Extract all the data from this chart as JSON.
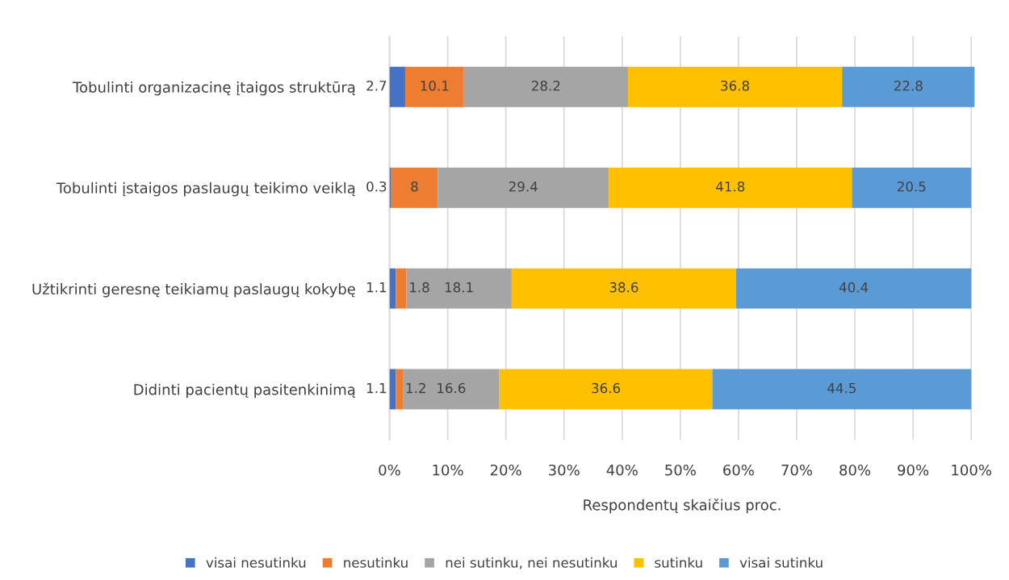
{
  "chart_data": {
    "type": "bar",
    "orientation": "horizontal",
    "stacked": true,
    "xlabel": "Respondentų skaičius proc.",
    "categories": [
      "Tobulinti organizacinę įtaigos struktūrą",
      "Tobulinti įstaigos paslaugų teikimo veiklą",
      "Užtikrinti geresnę teikiamų paslaugų kokybę",
      "Didinti pacientų pasitenkinimą"
    ],
    "series": [
      {
        "name": "visai nesutinku",
        "color": "#4472c4",
        "values": [
          2.7,
          0.3,
          1.1,
          1.1
        ]
      },
      {
        "name": "nesutinku",
        "color": "#ed7d31",
        "values": [
          10.1,
          8,
          1.8,
          1.2
        ]
      },
      {
        "name": "nei sutinku, nei nesutinku",
        "color": "#a5a5a5",
        "values": [
          28.2,
          29.4,
          18.1,
          16.6
        ]
      },
      {
        "name": "sutinku",
        "color": "#ffc000",
        "values": [
          36.8,
          41.8,
          38.6,
          36.6
        ]
      },
      {
        "name": "visai sutinku",
        "color": "#5b9bd5",
        "values": [
          22.8,
          20.5,
          40.4,
          44.5
        ]
      }
    ],
    "xlim": [
      0,
      100.6
    ],
    "xticks": [
      {
        "value": 0,
        "label": "0%"
      },
      {
        "value": 10,
        "label": "10%"
      },
      {
        "value": 20,
        "label": "20%"
      },
      {
        "value": 30,
        "label": "30%"
      },
      {
        "value": 40,
        "label": "40%"
      },
      {
        "value": 50,
        "label": "50%"
      },
      {
        "value": 60,
        "label": "60%"
      },
      {
        "value": 70,
        "label": "70%"
      },
      {
        "value": 80,
        "label": "80%"
      },
      {
        "value": 90,
        "label": "90%"
      },
      {
        "value": 100,
        "label": "100%"
      }
    ],
    "grid": "x",
    "legend": "bottom",
    "data_labels": true
  }
}
